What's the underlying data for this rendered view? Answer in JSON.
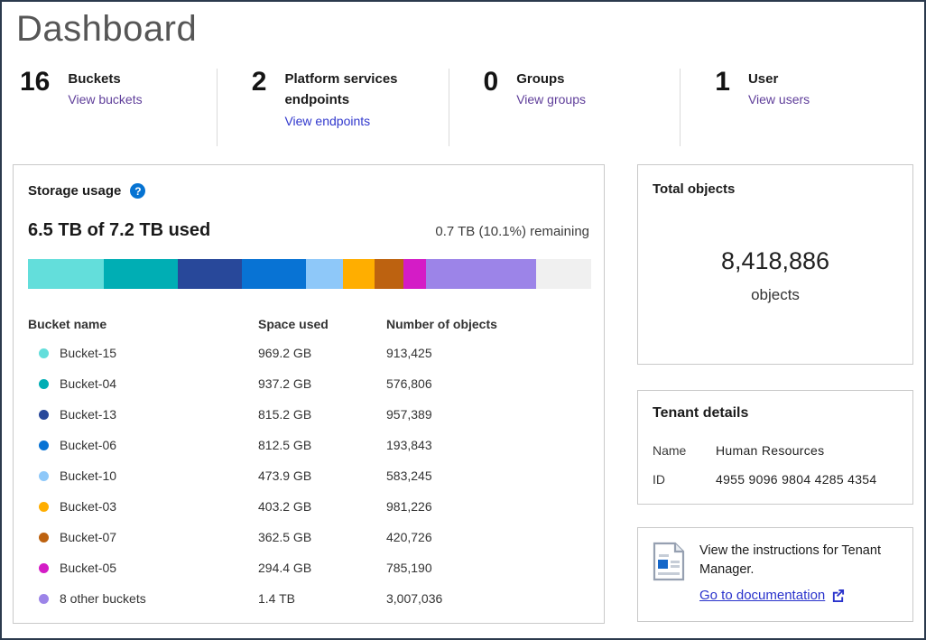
{
  "page": {
    "title": "Dashboard"
  },
  "colors": {
    "frame_border": "#2b3a4d",
    "accent_blue": "#0673d2",
    "link_blue": "#3138cd",
    "link_purple": "#5f3e9a",
    "remaining_gray": "#f0f0f0"
  },
  "stats": [
    {
      "value": "16",
      "label": "Buckets",
      "link_label": "View buckets",
      "link_style": "purple"
    },
    {
      "value": "2",
      "label": "Platform services endpoints",
      "link_label": "View endpoints",
      "link_style": "blue"
    },
    {
      "value": "0",
      "label": "Groups",
      "link_label": "View groups",
      "link_style": "purple"
    },
    {
      "value": "1",
      "label": "User",
      "link_label": "View users",
      "link_style": "purple"
    }
  ],
  "storage": {
    "title": "Storage usage",
    "used_text": "6.5 TB of 7.2 TB used",
    "remaining_text": "0.7 TB (10.1%) remaining",
    "table_headers": [
      "Bucket name",
      "Space used",
      "Number of objects"
    ]
  },
  "chart_data": {
    "type": "bar",
    "title": "Storage usage",
    "total_capacity_tb": 7.2,
    "used_tb": 6.5,
    "remaining_tb": 0.7,
    "remaining_percent": 10.1,
    "segments": [
      {
        "name": "Bucket-15",
        "space_used": "969.2 GB",
        "gb": 969.2,
        "objects": "913,425",
        "color": "#63dedb"
      },
      {
        "name": "Bucket-04",
        "space_used": "937.2 GB",
        "gb": 937.2,
        "objects": "576,806",
        "color": "#00aeb4"
      },
      {
        "name": "Bucket-13",
        "space_used": "815.2 GB",
        "gb": 815.2,
        "objects": "957,389",
        "color": "#28489a"
      },
      {
        "name": "Bucket-06",
        "space_used": "812.5 GB",
        "gb": 812.5,
        "objects": "193,843",
        "color": "#0873d4"
      },
      {
        "name": "Bucket-10",
        "space_used": "473.9 GB",
        "gb": 473.9,
        "objects": "583,245",
        "color": "#8ec8f9"
      },
      {
        "name": "Bucket-03",
        "space_used": "403.2 GB",
        "gb": 403.2,
        "objects": "981,226",
        "color": "#ffae00"
      },
      {
        "name": "Bucket-07",
        "space_used": "362.5 GB",
        "gb": 362.5,
        "objects": "420,726",
        "color": "#bd6210"
      },
      {
        "name": "Bucket-05",
        "space_used": "294.4 GB",
        "gb": 294.4,
        "objects": "785,190",
        "color": "#d41cc6"
      },
      {
        "name": "8 other buckets",
        "space_used": "1.4 TB",
        "gb": 1400,
        "objects": "3,007,036",
        "color": "#9c84e8"
      }
    ],
    "remaining_segment": {
      "name": "Remaining",
      "gb": 700,
      "color": "#f0f0f0"
    }
  },
  "total_objects": {
    "title": "Total objects",
    "value": "8,418,886",
    "unit": "objects"
  },
  "tenant": {
    "title": "Tenant details",
    "rows": [
      {
        "label": "Name",
        "value": "Human Resources"
      },
      {
        "label": "ID",
        "value": "4955  9096  9804  4285  4354"
      }
    ]
  },
  "documentation": {
    "text": "View the instructions for Tenant Manager.",
    "link_label": "Go to documentation"
  }
}
